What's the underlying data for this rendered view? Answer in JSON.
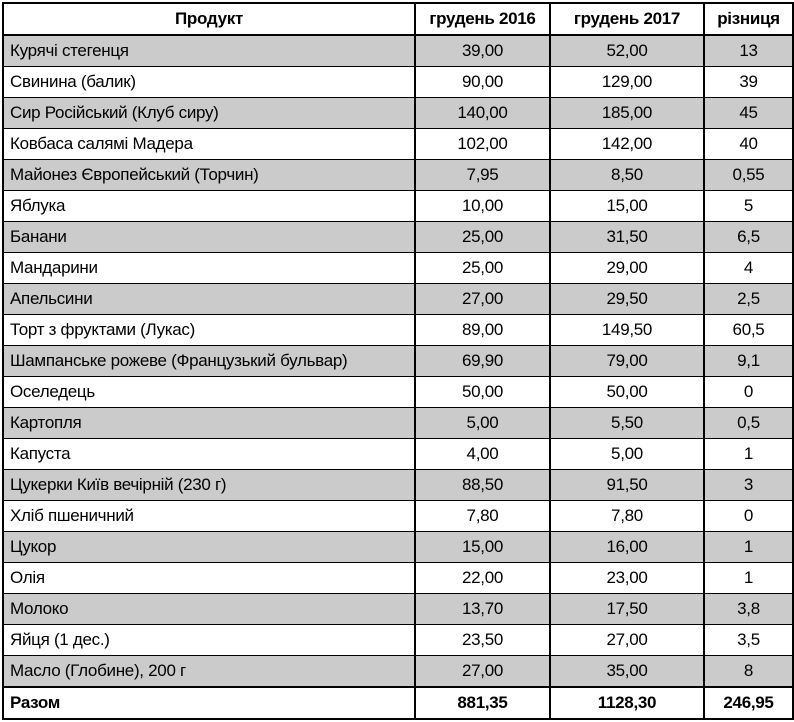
{
  "table": {
    "columns": [
      "Продукт",
      "грудень 2016",
      "грудень 2017",
      "різниця"
    ],
    "rows": [
      [
        "Курячі стегенця",
        "39,00",
        "52,00",
        "13"
      ],
      [
        "Свинина (балик)",
        "90,00",
        "129,00",
        "39"
      ],
      [
        "Сир Російський (Клуб сиру)",
        "140,00",
        "185,00",
        "45"
      ],
      [
        "Ковбаса салямі Мадера",
        "102,00",
        "142,00",
        "40"
      ],
      [
        "Майонез Європейський (Торчин)",
        "7,95",
        "8,50",
        "0,55"
      ],
      [
        "Яблука",
        "10,00",
        "15,00",
        "5"
      ],
      [
        "Банани",
        "25,00",
        "31,50",
        "6,5"
      ],
      [
        "Мандарини",
        "25,00",
        "29,00",
        "4"
      ],
      [
        "Апельсини",
        "27,00",
        "29,50",
        "2,5"
      ],
      [
        "Торт з фруктами (Лукас)",
        "89,00",
        "149,50",
        "60,5"
      ],
      [
        "Шампанське рожеве (Французький бульвар)",
        "69,90",
        "79,00",
        "9,1"
      ],
      [
        "Оселедець",
        "50,00",
        "50,00",
        "0"
      ],
      [
        "Картопля",
        "5,00",
        "5,50",
        "0,5"
      ],
      [
        "Капуста",
        "4,00",
        "5,00",
        "1"
      ],
      [
        "Цукерки Київ вечірній (230 г)",
        "88,50",
        "91,50",
        "3"
      ],
      [
        "Хліб пшеничний",
        "7,80",
        "7,80",
        "0"
      ],
      [
        "Цукор",
        "15,00",
        "16,00",
        "1"
      ],
      [
        "Олія",
        "22,00",
        "23,00",
        "1"
      ],
      [
        "Молоко",
        "13,70",
        "17,50",
        "3,8"
      ],
      [
        "Яйця (1 дес.)",
        "23,50",
        "27,00",
        "3,5"
      ],
      [
        "Масло (Глобине), 200 г",
        "27,00",
        "35,00",
        "8"
      ]
    ],
    "total": {
      "label": "Разом",
      "dec2016": "881,35",
      "dec2017": "1128,30",
      "diff": "246,95"
    }
  },
  "chart_data": {
    "type": "table",
    "title": "",
    "columns": [
      "Продукт",
      "грудень 2016",
      "грудень 2017",
      "різниця"
    ],
    "rows": [
      [
        "Курячі стегенця",
        39.0,
        52.0,
        13
      ],
      [
        "Свинина (балик)",
        90.0,
        129.0,
        39
      ],
      [
        "Сир Російський (Клуб сиру)",
        140.0,
        185.0,
        45
      ],
      [
        "Ковбаса салямі Мадера",
        102.0,
        142.0,
        40
      ],
      [
        "Майонез Європейський (Торчин)",
        7.95,
        8.5,
        0.55
      ],
      [
        "Яблука",
        10.0,
        15.0,
        5
      ],
      [
        "Банани",
        25.0,
        31.5,
        6.5
      ],
      [
        "Мандарини",
        25.0,
        29.0,
        4
      ],
      [
        "Апельсини",
        27.0,
        29.5,
        2.5
      ],
      [
        "Торт з фруктами (Лукас)",
        89.0,
        149.5,
        60.5
      ],
      [
        "Шампанське рожеве (Французький бульвар)",
        69.9,
        79.0,
        9.1
      ],
      [
        "Оселедець",
        50.0,
        50.0,
        0
      ],
      [
        "Картопля",
        5.0,
        5.5,
        0.5
      ],
      [
        "Капуста",
        4.0,
        5.0,
        1
      ],
      [
        "Цукерки Київ вечірній (230 г)",
        88.5,
        91.5,
        3
      ],
      [
        "Хліб пшеничний",
        7.8,
        7.8,
        0
      ],
      [
        "Цукор",
        15.0,
        16.0,
        1
      ],
      [
        "Олія",
        22.0,
        23.0,
        1
      ],
      [
        "Молоко",
        13.7,
        17.5,
        3.8
      ],
      [
        "Яйця (1 дес.)",
        23.5,
        27.0,
        3.5
      ],
      [
        "Масло (Глобине), 200 г",
        27.0,
        35.0,
        8
      ]
    ],
    "totals_row": [
      "Разом",
      881.35,
      1128.3,
      246.95
    ]
  },
  "colors": {
    "row_shade": "#cbcbcb",
    "border": "#000000",
    "background": "#ffffff"
  }
}
